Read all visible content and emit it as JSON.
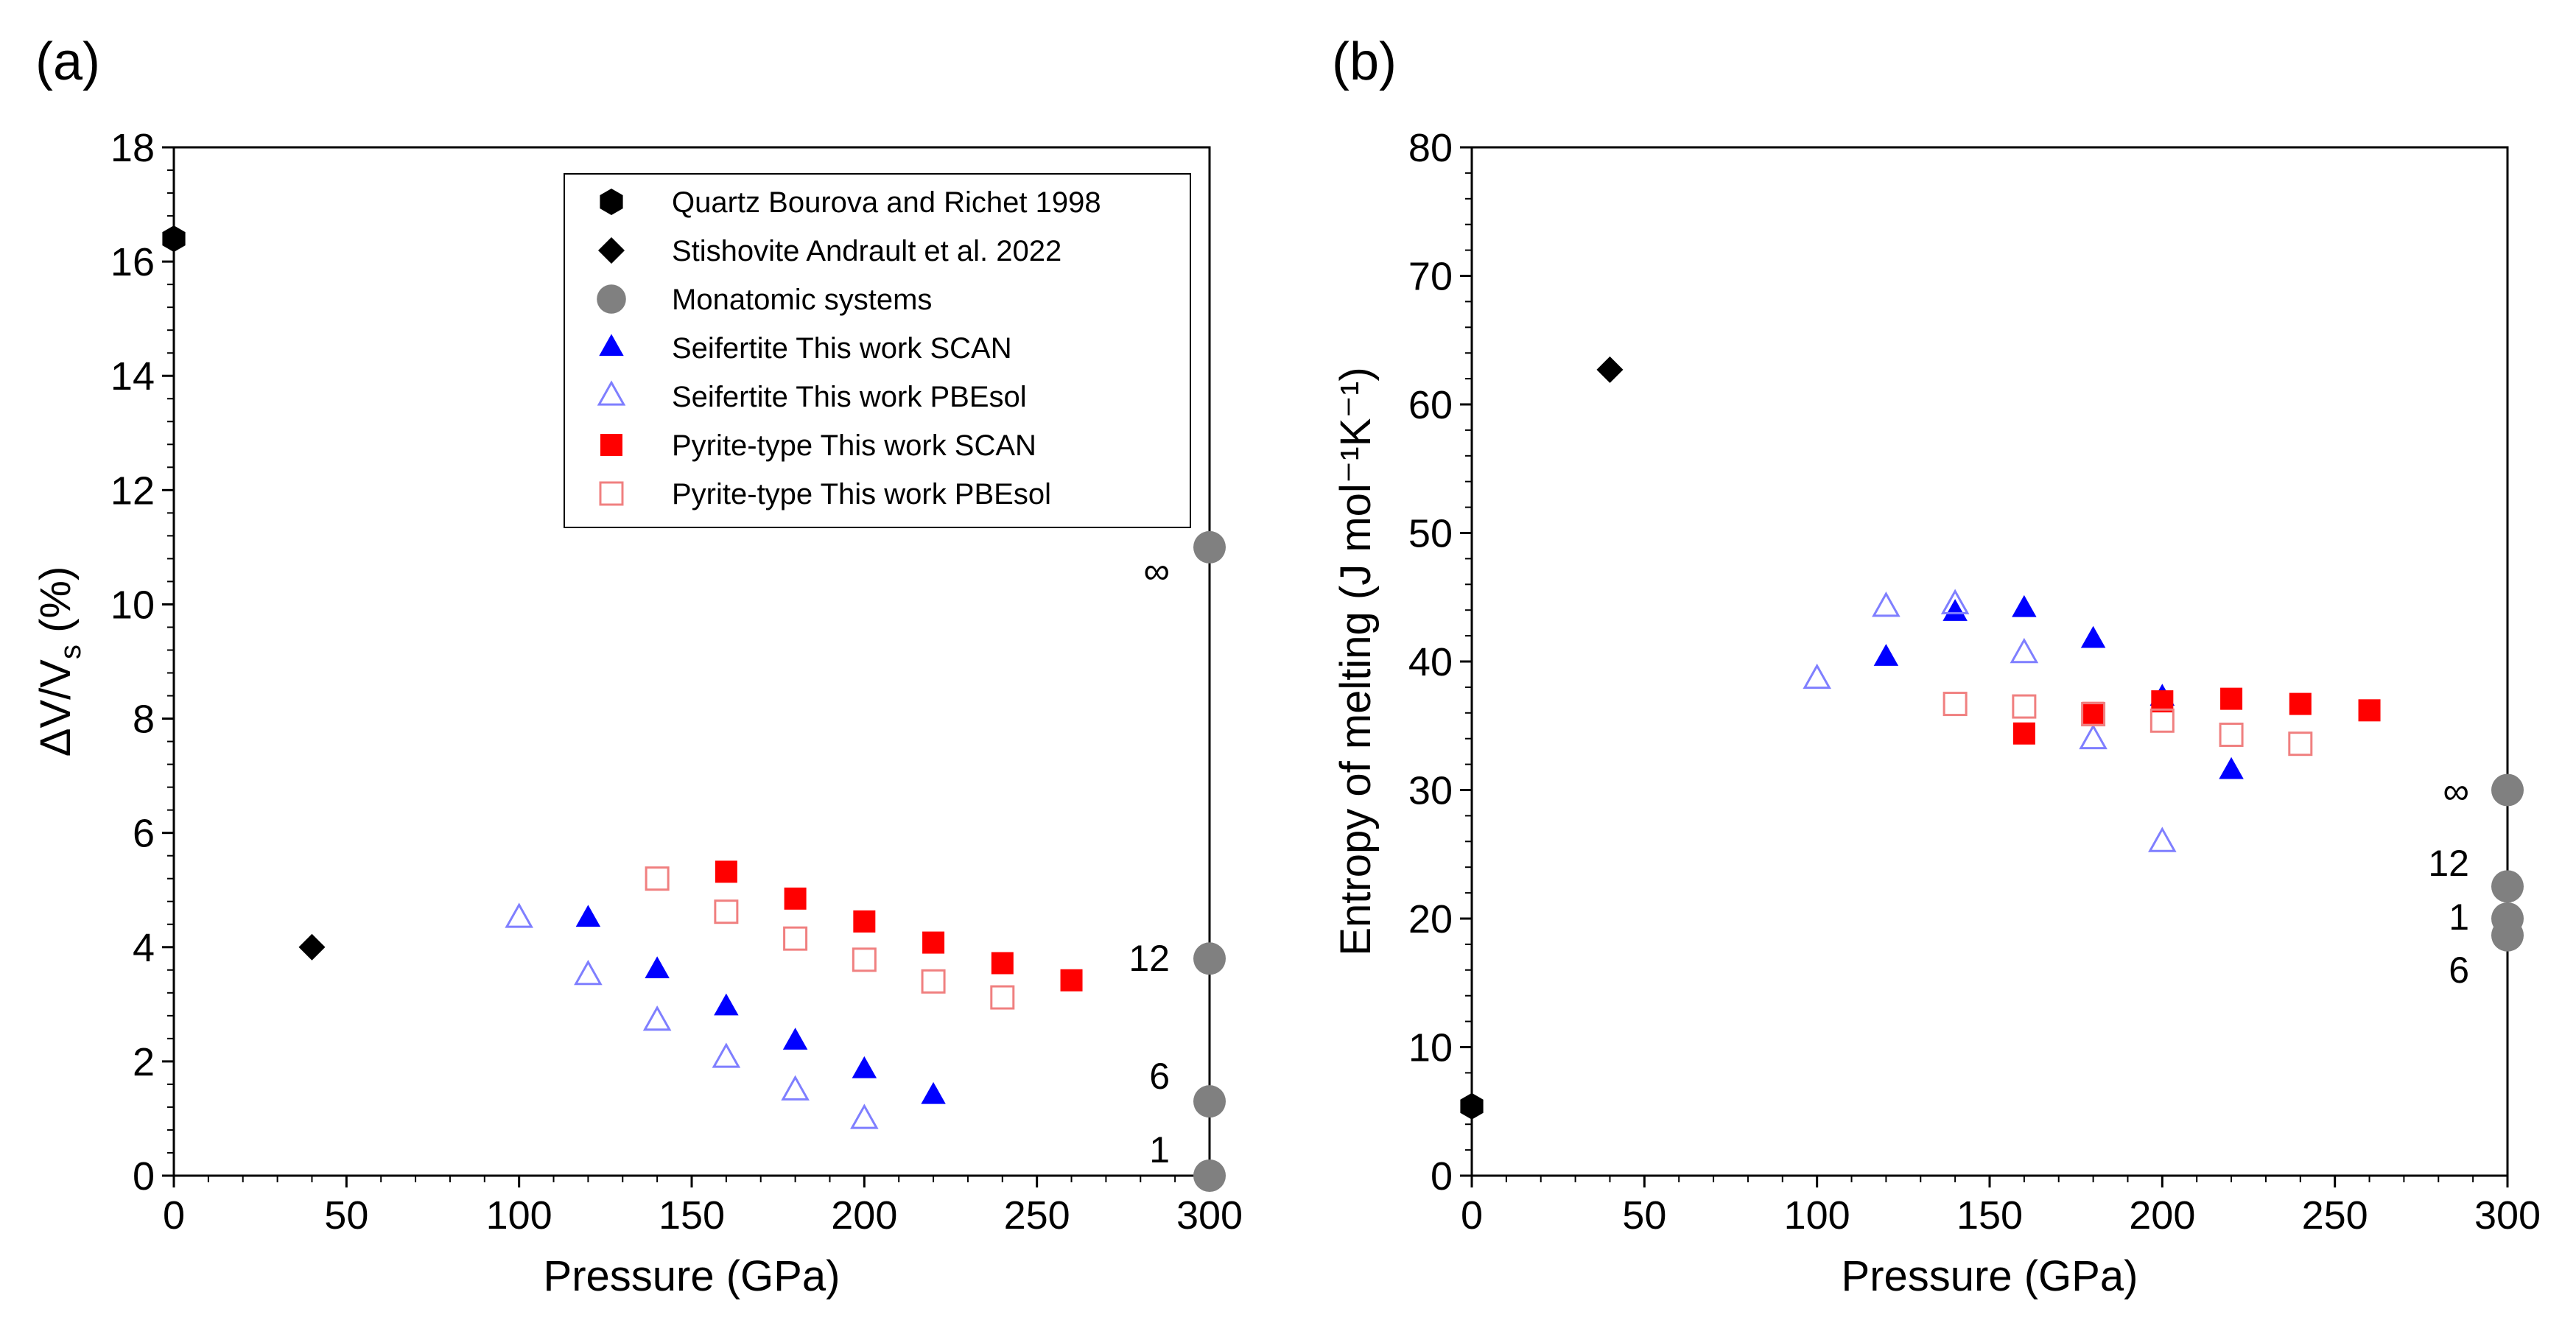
{
  "chart_data": [
    {
      "type": "scatter",
      "panel_label": "(a)",
      "xlabel": "Pressure (GPa)",
      "ylabel": "ΔV/V",
      "ylabel_sub": "s",
      "ylabel_suffix": " (%)",
      "xlim": [
        0,
        300
      ],
      "ylim": [
        0,
        18
      ],
      "xticks": [
        0,
        50,
        100,
        150,
        200,
        250,
        300
      ],
      "yticks": [
        0,
        2,
        4,
        6,
        8,
        10,
        12,
        14,
        16,
        18
      ],
      "legend_position": "top-right",
      "legend": [
        {
          "label": "Quartz Bourova and Richet 1998",
          "marker": "hexagon",
          "color": "#000000",
          "filled": true
        },
        {
          "label": "Stishovite Andrault et al. 2022",
          "marker": "diamond",
          "color": "#000000",
          "filled": true
        },
        {
          "label": "Monatomic systems",
          "marker": "circle",
          "color": "#808080",
          "filled": true
        },
        {
          "label": "Seifertite This work SCAN",
          "marker": "triangle",
          "color": "#0000ff",
          "filled": true
        },
        {
          "label": "Seifertite This work PBEsol",
          "marker": "triangle",
          "color": "#7f7fff",
          "filled": false
        },
        {
          "label": "Pyrite-type This work SCAN",
          "marker": "square",
          "color": "#ff0000",
          "filled": true
        },
        {
          "label": "Pyrite-type This work PBEsol",
          "marker": "square",
          "color": "#f08080",
          "filled": false
        }
      ],
      "series": [
        {
          "name": "Quartz Bourova and Richet 1998",
          "marker": "hexagon",
          "color": "#000000",
          "filled": true,
          "x": [
            0
          ],
          "y": [
            16.4
          ]
        },
        {
          "name": "Stishovite Andrault et al. 2022",
          "marker": "diamond",
          "color": "#000000",
          "filled": true,
          "x": [
            40
          ],
          "y": [
            4.0
          ]
        },
        {
          "name": "Monatomic systems",
          "marker": "circle",
          "color": "#808080",
          "filled": true,
          "x": [
            300,
            300,
            300,
            300
          ],
          "y": [
            11.0,
            3.8,
            1.3,
            0.0
          ],
          "labels": [
            "∞",
            "12",
            "6",
            "1"
          ]
        },
        {
          "name": "Seifertite This work SCAN",
          "marker": "triangle",
          "color": "#0000ff",
          "filled": true,
          "x": [
            120,
            140,
            160,
            180,
            200,
            220
          ],
          "y": [
            4.5,
            3.6,
            2.95,
            2.35,
            1.85,
            1.4
          ]
        },
        {
          "name": "Seifertite This work PBEsol",
          "marker": "triangle",
          "color": "#7f7fff",
          "filled": false,
          "x": [
            100,
            120,
            140,
            160,
            180,
            200
          ],
          "y": [
            4.5,
            3.5,
            2.7,
            2.05,
            1.48,
            0.98
          ]
        },
        {
          "name": "Pyrite-type This work SCAN",
          "marker": "square",
          "color": "#ff0000",
          "filled": true,
          "x": [
            160,
            180,
            200,
            220,
            240,
            260
          ],
          "y": [
            5.32,
            4.85,
            4.45,
            4.08,
            3.72,
            3.42
          ]
        },
        {
          "name": "Pyrite-type This work PBEsol",
          "marker": "square",
          "color": "#f08080",
          "filled": false,
          "x": [
            140,
            160,
            180,
            200,
            220,
            240
          ],
          "y": [
            5.2,
            4.62,
            4.15,
            3.78,
            3.4,
            3.12
          ]
        }
      ]
    },
    {
      "type": "scatter",
      "panel_label": "(b)",
      "xlabel": "Pressure (GPa)",
      "ylabel": "Entropy of melting (J mol⁻¹K⁻¹)",
      "xlim": [
        0,
        300
      ],
      "ylim": [
        0,
        80
      ],
      "xticks": [
        0,
        50,
        100,
        150,
        200,
        250,
        300
      ],
      "yticks": [
        0,
        10,
        20,
        30,
        40,
        50,
        60,
        70,
        80
      ],
      "series": [
        {
          "name": "Quartz Bourova and Richet 1998",
          "marker": "hexagon",
          "color": "#000000",
          "filled": true,
          "x": [
            0
          ],
          "y": [
            5.4
          ]
        },
        {
          "name": "Stishovite Andrault et al. 2022",
          "marker": "diamond",
          "color": "#000000",
          "filled": true,
          "x": [
            40
          ],
          "y": [
            62.7
          ]
        },
        {
          "name": "Monatomic systems",
          "marker": "circle",
          "color": "#808080",
          "filled": true,
          "x": [
            300,
            300,
            300,
            300
          ],
          "y": [
            30.0,
            22.5,
            20.0,
            18.7
          ],
          "labels": [
            "∞",
            "12",
            "1",
            "6"
          ]
        },
        {
          "name": "Seifertite This work SCAN",
          "marker": "triangle",
          "color": "#0000ff",
          "filled": true,
          "x": [
            120,
            140,
            160,
            180,
            200,
            220
          ],
          "y": [
            40.3,
            43.8,
            44.1,
            41.7,
            37.2,
            31.5
          ]
        },
        {
          "name": "Seifertite This work PBEsol",
          "marker": "triangle",
          "color": "#7f7fff",
          "filled": false,
          "x": [
            100,
            120,
            140,
            160,
            180,
            200
          ],
          "y": [
            38.6,
            44.2,
            44.4,
            40.6,
            33.9,
            25.9
          ]
        },
        {
          "name": "Pyrite-type This work SCAN",
          "marker": "square",
          "color": "#ff0000",
          "filled": true,
          "x": [
            160,
            180,
            200,
            220,
            240,
            260
          ],
          "y": [
            34.4,
            36.0,
            36.9,
            37.1,
            36.7,
            36.2
          ]
        },
        {
          "name": "Pyrite-type This work PBEsol",
          "marker": "square",
          "color": "#f08080",
          "filled": false,
          "x": [
            140,
            160,
            180,
            200,
            220,
            240
          ],
          "y": [
            36.7,
            36.5,
            35.9,
            35.4,
            34.3,
            33.6
          ]
        }
      ]
    }
  ]
}
